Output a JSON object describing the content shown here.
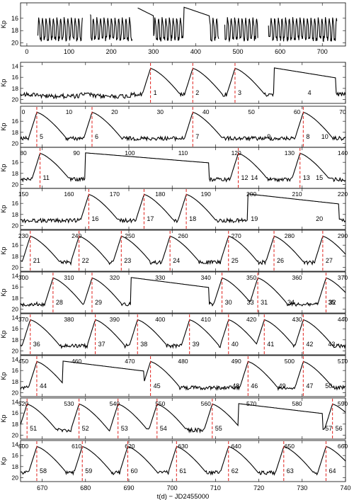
{
  "chart_data": [
    {
      "type": "line",
      "panel": "overview",
      "ylabel": "Kp",
      "x_ticks": [
        0,
        100,
        200,
        300,
        400,
        500,
        600,
        700
      ],
      "y_ticks": [
        16,
        18,
        20
      ],
      "xlim": [
        -15,
        755
      ],
      "ylim_inverted": [
        20.5,
        13.5
      ]
    },
    {
      "type": "line",
      "panel": "zoomed-rows",
      "ylabel": "Kp",
      "xlabel": "t(d) − JD2455000",
      "bottom_ticks": [
        670,
        680,
        690,
        700,
        710,
        720,
        730,
        740
      ],
      "bottom_xlim": [
        665,
        740
      ],
      "y_ticks": [
        14,
        16,
        18,
        20
      ],
      "rows": [
        {
          "y_ticks": [
            14,
            16,
            18,
            20
          ],
          "cycle_labels": [
            "1",
            "2",
            "3",
            "4"
          ],
          "top_labels": []
        },
        {
          "y_ticks": [
            16,
            18,
            20
          ],
          "cycle_labels": [
            "5",
            "6",
            "7",
            "8",
            "9",
            "10"
          ],
          "top_labels": [
            "0",
            "10",
            "20",
            "30",
            "40",
            "50",
            "60",
            "70"
          ]
        },
        {
          "y_ticks": [
            16,
            18,
            20
          ],
          "cycle_labels": [
            "11",
            "12",
            "13",
            "14",
            "15"
          ],
          "top_labels": [
            "80",
            "90",
            "100",
            "110",
            "120",
            "130",
            "140"
          ]
        },
        {
          "y_ticks": [
            16,
            18,
            20
          ],
          "cycle_labels": [
            "16",
            "17",
            "18",
            "19",
            "20"
          ],
          "top_labels": [
            "150",
            "160",
            "170",
            "180",
            "190",
            "200",
            "210",
            "220"
          ]
        },
        {
          "y_ticks": [
            16,
            18,
            20
          ],
          "cycle_labels": [
            "21",
            "22",
            "23",
            "24",
            "25",
            "26",
            "27"
          ],
          "top_labels": [
            "230",
            "240",
            "250",
            "260",
            "270",
            "280",
            "290"
          ]
        },
        {
          "y_ticks": [
            14,
            16,
            18,
            20
          ],
          "cycle_labels": [
            "28",
            "29",
            "30",
            "31",
            "32",
            "33",
            "34",
            "35"
          ],
          "top_labels": [
            "300",
            "310",
            "320",
            "330",
            "340",
            "350",
            "360",
            "370"
          ]
        },
        {
          "y_ticks": [
            14,
            16,
            18,
            20
          ],
          "cycle_labels": [
            "36",
            "37",
            "38",
            "39",
            "40",
            "41",
            "42",
            "43"
          ],
          "top_labels": [
            "370",
            "380",
            "390",
            "400",
            "410",
            "420",
            "430",
            "440"
          ]
        },
        {
          "y_ticks": [
            14,
            16,
            18,
            20
          ],
          "cycle_labels": [
            "44",
            "45",
            "46",
            "47",
            "48",
            "49",
            "50"
          ],
          "top_labels": [
            "450",
            "460",
            "470",
            "480",
            "490",
            "500",
            "510"
          ]
        },
        {
          "y_ticks": [
            14,
            16,
            18,
            20
          ],
          "cycle_labels": [
            "51",
            "52",
            "53",
            "54",
            "55",
            "56",
            "57"
          ],
          "top_labels": [
            "520",
            "530",
            "540",
            "550",
            "560",
            "570",
            "580",
            "590"
          ]
        },
        {
          "y_ticks": [
            14,
            16,
            18,
            20
          ],
          "cycle_labels": [
            "58",
            "59",
            "60",
            "61",
            "62",
            "63",
            "64"
          ],
          "top_labels": [
            "600",
            "610",
            "620",
            "630",
            "640",
            "650",
            "660"
          ]
        }
      ]
    }
  ]
}
